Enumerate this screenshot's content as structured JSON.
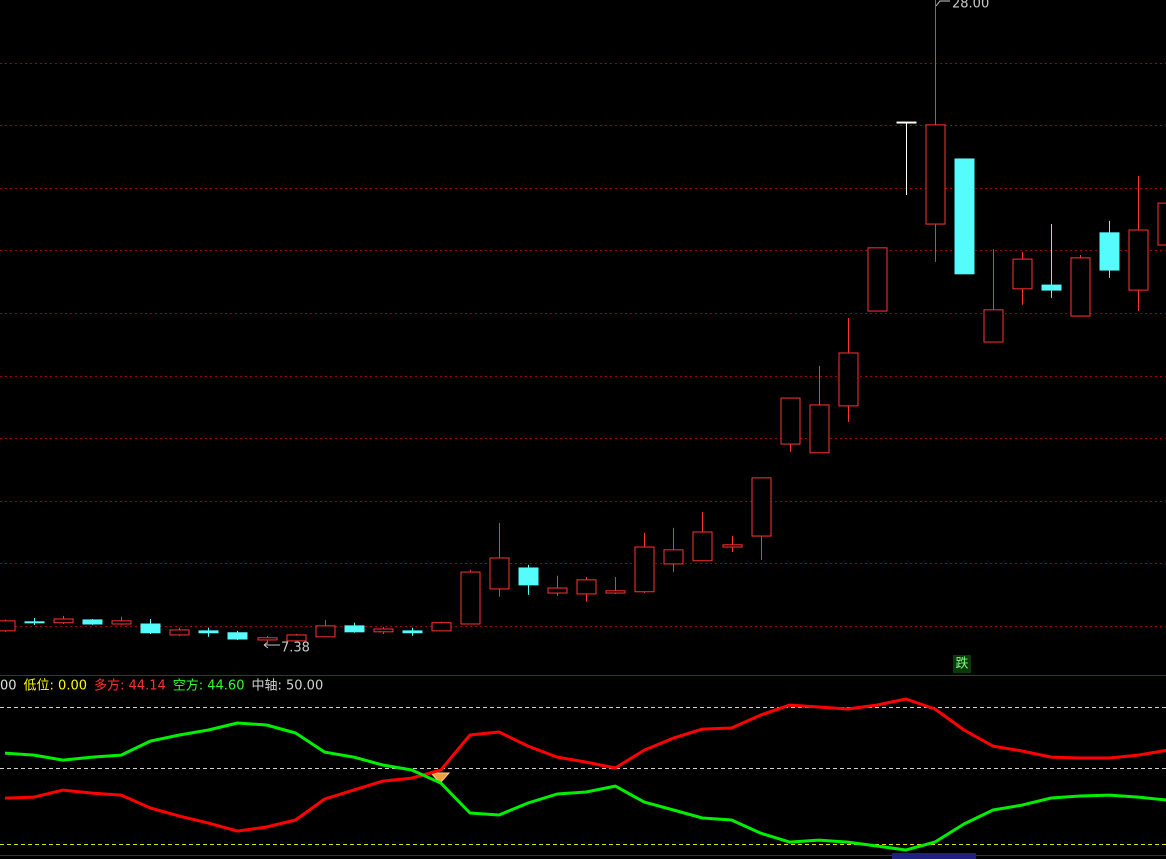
{
  "chart_data": [
    {
      "type": "candlestick",
      "categories": [
        null,
        null,
        null,
        null,
        null,
        null,
        null,
        null,
        null,
        null,
        null,
        null,
        null,
        null,
        null,
        null,
        null,
        null,
        null,
        null,
        null,
        null,
        null,
        null,
        null,
        null,
        null,
        null,
        null,
        null,
        null,
        null,
        null,
        null,
        null,
        null,
        null,
        null,
        null,
        null,
        null
      ],
      "open": [
        7.84,
        8.13,
        8.1,
        8.19,
        8.06,
        8.06,
        7.71,
        7.84,
        7.78,
        7.55,
        7.52,
        7.65,
        8.0,
        7.81,
        7.84,
        7.84,
        8.06,
        9.18,
        9.85,
        9.05,
        9.02,
        9.05,
        9.09,
        9.98,
        10.08,
        10.52,
        10.87,
        13.81,
        13.53,
        15.03,
        18.06,
        24.1,
        20.84,
        22.92,
        17.07,
        18.77,
        18.89,
        17.9,
        20.56,
        18.73,
        20.17
      ],
      "high": [
        8.19,
        8.25,
        8.32,
        8.22,
        8.29,
        8.22,
        7.94,
        7.94,
        7.84,
        7.68,
        7.74,
        8.19,
        8.1,
        7.97,
        7.94,
        8.13,
        9.79,
        11.29,
        9.95,
        9.6,
        9.56,
        9.56,
        10.97,
        11.13,
        11.64,
        10.87,
        12.73,
        15.28,
        16.31,
        17.84,
        20.08,
        24.1,
        28.0,
        22.92,
        20.04,
        19.95,
        20.84,
        19.85,
        20.94,
        22.38,
        21.61
      ],
      "low": [
        7.81,
        8.03,
        8.06,
        8.03,
        8.03,
        7.74,
        7.68,
        7.65,
        7.55,
        7.38,
        7.49,
        7.65,
        7.78,
        7.74,
        7.68,
        7.84,
        8.06,
        8.93,
        8.99,
        8.96,
        8.77,
        9.02,
        9.05,
        9.72,
        10.08,
        10.36,
        10.11,
        13.56,
        13.53,
        14.52,
        18.06,
        21.77,
        19.63,
        19.25,
        17.07,
        18.26,
        18.48,
        17.9,
        19.12,
        18.06,
        20.17
      ],
      "close": [
        8.16,
        8.12,
        8.22,
        8.06,
        8.16,
        7.78,
        7.87,
        7.78,
        7.58,
        7.62,
        7.71,
        8.0,
        7.81,
        7.9,
        7.78,
        8.1,
        9.72,
        10.17,
        9.31,
        9.21,
        9.47,
        9.12,
        10.52,
        10.43,
        11.0,
        10.59,
        12.73,
        15.28,
        15.06,
        16.72,
        20.08,
        24.1,
        24.01,
        19.25,
        18.1,
        19.72,
        18.73,
        19.76,
        19.37,
        20.65,
        21.51
      ],
      "up_color": "#ff3232",
      "down_color": "#54fcfc",
      "flat_color": "#ffffff",
      "ylim": [
        6.43,
        28.0
      ],
      "yticks": [
        8,
        10,
        12,
        14,
        16,
        18,
        20,
        22,
        24,
        26
      ],
      "grid": true,
      "grid_color": "#a00000",
      "annotations": {
        "max_label": "28.00",
        "min_label": "7.38",
        "signal": "跌"
      }
    },
    {
      "type": "line",
      "categories": [
        null,
        null,
        null,
        null,
        null,
        null,
        null,
        null,
        null,
        null,
        null,
        null,
        null,
        null,
        null,
        null,
        null,
        null,
        null,
        null,
        null,
        null,
        null,
        null,
        null,
        null,
        null,
        null,
        null,
        null,
        null,
        null,
        null,
        null,
        null,
        null,
        null,
        null,
        null,
        null,
        null
      ],
      "legend": [
        {
          "text": "00",
          "color": "#e0e0e0"
        },
        {
          "text": "低位: 0.00",
          "color": "#ffff00"
        },
        {
          "text": "多方: 44.14",
          "color": "#ff3030"
        },
        {
          "text": "空方: 44.60",
          "color": "#30ff30"
        },
        {
          "text": "中轴: 50.00",
          "color": "#d0d0d0"
        }
      ],
      "series": [
        {
          "color": "#ff0000",
          "values": [
            30.25,
            30.9,
            35.5,
            33.5,
            32.2,
            23.7,
            18.4,
            13.8,
            8.5,
            11.2,
            15.8,
            29.6,
            35.5,
            41.4,
            43.4,
            48.7,
            71.7,
            73.7,
            64.4,
            57.2,
            53.9,
            50.0,
            61.8,
            69.7,
            75.6,
            76.3,
            84.8,
            91.4,
            90.1,
            88.8,
            91.4,
            95.4,
            88.8,
            75.0,
            64.4,
            61.2,
            57.2,
            56.6,
            56.6,
            58.5,
            61.8
          ]
        },
        {
          "color": "#00ee00",
          "values": [
            59.8,
            58.5,
            55.2,
            57.2,
            58.5,
            67.7,
            71.7,
            75.0,
            79.6,
            78.3,
            73.0,
            60.5,
            57.2,
            52.0,
            48.7,
            40.1,
            20.4,
            19.1,
            27.0,
            32.9,
            34.2,
            38.1,
            27.6,
            22.4,
            17.1,
            15.8,
            7.2,
            1.3,
            2.6,
            1.3,
            -1.3,
            -3.9,
            1.3,
            13.2,
            22.4,
            25.6,
            30.3,
            31.6,
            32.2,
            30.9,
            28.9
          ]
        }
      ],
      "ylim": [
        -7.2,
        109.2
      ],
      "reference_lines": [
        {
          "value": 90,
          "color": "#d0d0d0"
        },
        {
          "value": 50,
          "color": "#d0d0d0"
        },
        {
          "value": 0,
          "color": "#e0e000"
        }
      ]
    }
  ]
}
